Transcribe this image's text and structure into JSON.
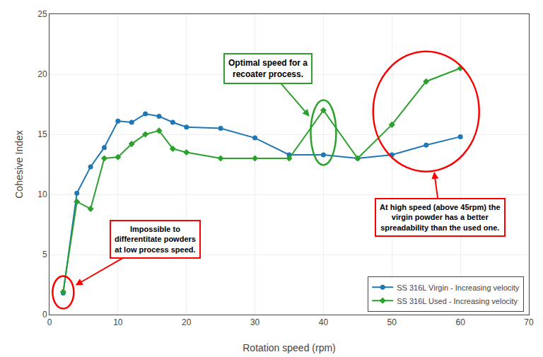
{
  "chart_data": {
    "type": "line",
    "x": [
      2,
      4,
      6,
      8,
      10,
      12,
      14,
      16,
      18,
      20,
      25,
      30,
      35,
      40,
      45,
      50,
      55,
      60
    ],
    "series": [
      {
        "name": "SS 316L Virgin - Increasing velocity",
        "color": "#1f77b4",
        "marker": "circle",
        "values": [
          1.8,
          10.1,
          12.3,
          13.9,
          16.1,
          16.0,
          16.7,
          16.5,
          16.0,
          15.6,
          15.5,
          14.7,
          13.3,
          13.3,
          13.0,
          13.3,
          14.1,
          14.8
        ]
      },
      {
        "name": "SS 316L Used - Increasing velocity",
        "color": "#2ca02c",
        "marker": "diamond",
        "values": [
          1.9,
          9.4,
          8.8,
          13.0,
          13.1,
          14.2,
          15.0,
          15.3,
          13.8,
          13.5,
          13.0,
          13.0,
          13.0,
          17.0,
          13.0,
          15.8,
          19.4,
          20.5
        ]
      }
    ],
    "xlabel": "Rotation speed (rpm)",
    "ylabel": "Cohesive Index",
    "xlim": [
      0,
      70
    ],
    "ylim": [
      0,
      25
    ],
    "xticks": [
      0,
      10,
      20,
      30,
      40,
      50,
      60,
      70
    ],
    "yticks": [
      0,
      5,
      10,
      15,
      20,
      25
    ],
    "grid": true,
    "legend": "lower right",
    "annotations": [
      {
        "text": "Impossible to\ndifferentitate powders\nat low process speed.",
        "color": "red"
      },
      {
        "text": "Optimal speed for a\nrecoater process.",
        "color": "#2ca02c"
      },
      {
        "text": "At high speed (above 45rpm) the\nvirgin powder has a better\nspreadability than the used one.",
        "color": "red"
      }
    ]
  }
}
